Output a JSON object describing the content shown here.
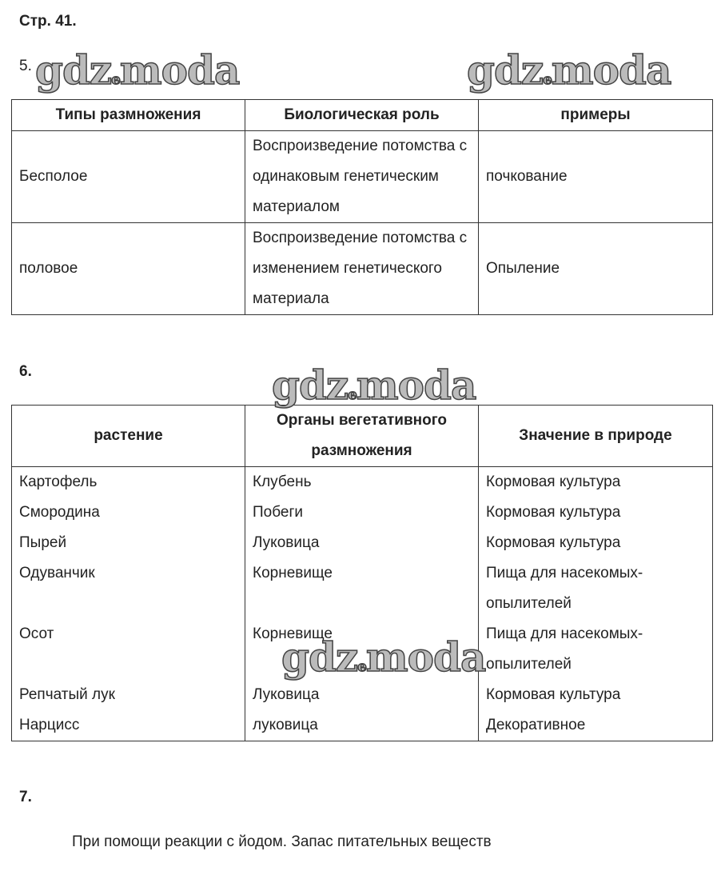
{
  "page_label": "Стр. 41.",
  "watermark": "gdz.moda",
  "task5": {
    "number": "5.",
    "headers": [
      "Типы размножения",
      "Биологическая роль",
      "примеры"
    ],
    "rows": [
      [
        "Бесполое",
        "Воспроизведение потомства с одинаковым генетическим материалом",
        "почкование"
      ],
      [
        "половое",
        "Воспроизведение потомства с изменением генетического материала",
        "Опыление"
      ]
    ]
  },
  "task6": {
    "number": "6.",
    "headers": [
      "растение",
      "Органы вегетативного размножения",
      "Значение в природе"
    ],
    "col1": [
      "Картофель",
      "Смородина",
      "Пырей",
      "Одуванчик",
      "",
      "Осот",
      "",
      "Репчатый лук",
      "Нарцисс"
    ],
    "col2": [
      "Клубень",
      "Побеги",
      "Луковица",
      "Корневище",
      "",
      "Корневище",
      "",
      "Луковица",
      "луковица"
    ],
    "col3": [
      "Кормовая культура",
      "Кормовая культура",
      "Кормовая культура",
      "Пища для насекомых-",
      "опылителей",
      "Пища для насекомых-",
      "опылителей",
      "Кормовая культура",
      "Декоративное"
    ]
  },
  "task7": {
    "number": "7.",
    "answer": "При помощи реакции с йодом. Запас питательных веществ"
  }
}
